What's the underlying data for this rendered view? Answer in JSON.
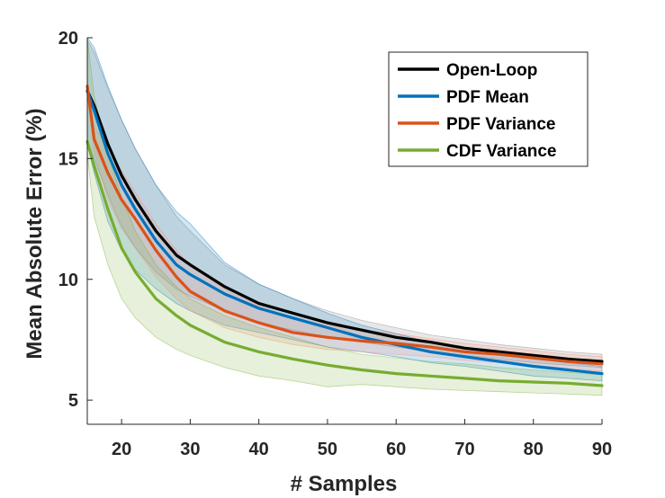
{
  "chart_data": {
    "type": "line",
    "title": "",
    "xlabel": "# Samples",
    "ylabel": "Mean Absolute Error (%)",
    "xlim": [
      15,
      90
    ],
    "ylim": [
      4,
      20
    ],
    "xticks": [
      20,
      30,
      40,
      50,
      60,
      70,
      80,
      90
    ],
    "yticks": [
      5,
      10,
      15,
      20
    ],
    "x": [
      15,
      16,
      18,
      20,
      22,
      25,
      28,
      30,
      35,
      40,
      45,
      50,
      55,
      60,
      65,
      70,
      75,
      80,
      85,
      90
    ],
    "series": [
      {
        "name": "Open-Loop",
        "color": "#000000",
        "band_color": "#808080",
        "values": [
          17.8,
          17.2,
          15.6,
          14.3,
          13.3,
          12.0,
          11.0,
          10.6,
          9.7,
          9.0,
          8.6,
          8.2,
          7.9,
          7.6,
          7.4,
          7.15,
          7.0,
          6.85,
          6.7,
          6.6
        ],
        "upper": [
          19.9,
          19.4,
          17.9,
          16.6,
          15.4,
          13.9,
          12.6,
          12.0,
          10.6,
          9.8,
          9.2,
          8.7,
          8.3,
          8.0,
          7.7,
          7.5,
          7.3,
          7.15,
          7.0,
          6.9
        ],
        "lower": [
          15.7,
          15.0,
          13.5,
          12.2,
          11.3,
          10.3,
          9.6,
          9.3,
          8.7,
          8.2,
          7.9,
          7.6,
          7.4,
          7.2,
          7.0,
          6.85,
          6.7,
          6.55,
          6.45,
          6.35
        ]
      },
      {
        "name": "PDF Mean",
        "color": "#0072BD",
        "band_color": "#0072BD",
        "values": [
          17.8,
          17.0,
          15.2,
          13.9,
          12.9,
          11.6,
          10.6,
          10.2,
          9.4,
          8.8,
          8.4,
          8.0,
          7.6,
          7.3,
          7.0,
          6.8,
          6.6,
          6.4,
          6.25,
          6.1
        ],
        "upper": [
          20.0,
          19.6,
          18.0,
          16.6,
          15.4,
          13.9,
          12.8,
          12.3,
          10.7,
          9.8,
          9.2,
          8.6,
          8.1,
          7.75,
          7.4,
          7.15,
          6.9,
          6.7,
          6.55,
          6.4
        ],
        "lower": [
          15.6,
          14.4,
          12.4,
          11.2,
          10.4,
          9.6,
          9.0,
          8.7,
          8.1,
          7.8,
          7.5,
          7.2,
          7.0,
          6.8,
          6.55,
          6.4,
          6.2,
          6.0,
          5.9,
          5.8
        ]
      },
      {
        "name": "PDF Variance",
        "color": "#D95319",
        "band_color": "#FF8C75",
        "values": [
          18.0,
          15.8,
          14.4,
          13.3,
          12.5,
          11.2,
          10.1,
          9.5,
          8.7,
          8.2,
          7.8,
          7.6,
          7.45,
          7.35,
          7.2,
          7.0,
          6.9,
          6.75,
          6.6,
          6.5
        ],
        "upper": [
          18.2,
          16.3,
          15.5,
          14.5,
          13.6,
          12.3,
          11.2,
          10.6,
          9.6,
          8.9,
          8.4,
          8.1,
          7.9,
          7.75,
          7.55,
          7.35,
          7.2,
          7.05,
          6.9,
          6.8
        ],
        "lower": [
          17.7,
          15.3,
          13.3,
          12.1,
          11.3,
          10.1,
          9.2,
          8.7,
          8.0,
          7.6,
          7.3,
          7.1,
          7.0,
          6.9,
          6.8,
          6.65,
          6.55,
          6.45,
          6.3,
          6.2
        ]
      },
      {
        "name": "CDF Variance",
        "color": "#77AC30",
        "band_color": "#77AC30",
        "values": [
          15.7,
          14.7,
          12.9,
          11.3,
          10.3,
          9.2,
          8.5,
          8.1,
          7.4,
          7.0,
          6.7,
          6.45,
          6.25,
          6.1,
          6.0,
          5.9,
          5.8,
          5.75,
          5.7,
          5.6
        ],
        "upper": [
          20.0,
          17.6,
          15.2,
          13.4,
          12.0,
          10.6,
          9.7,
          9.2,
          8.5,
          8.0,
          7.6,
          7.2,
          6.9,
          6.75,
          6.6,
          6.5,
          6.35,
          6.25,
          6.15,
          6.05
        ],
        "lower": [
          15.2,
          12.6,
          10.6,
          9.2,
          8.4,
          7.6,
          7.1,
          6.85,
          6.35,
          6.0,
          5.8,
          5.55,
          5.65,
          5.55,
          5.45,
          5.4,
          5.35,
          5.3,
          5.25,
          5.2
        ]
      }
    ],
    "legend": {
      "placement": "top-right"
    }
  }
}
